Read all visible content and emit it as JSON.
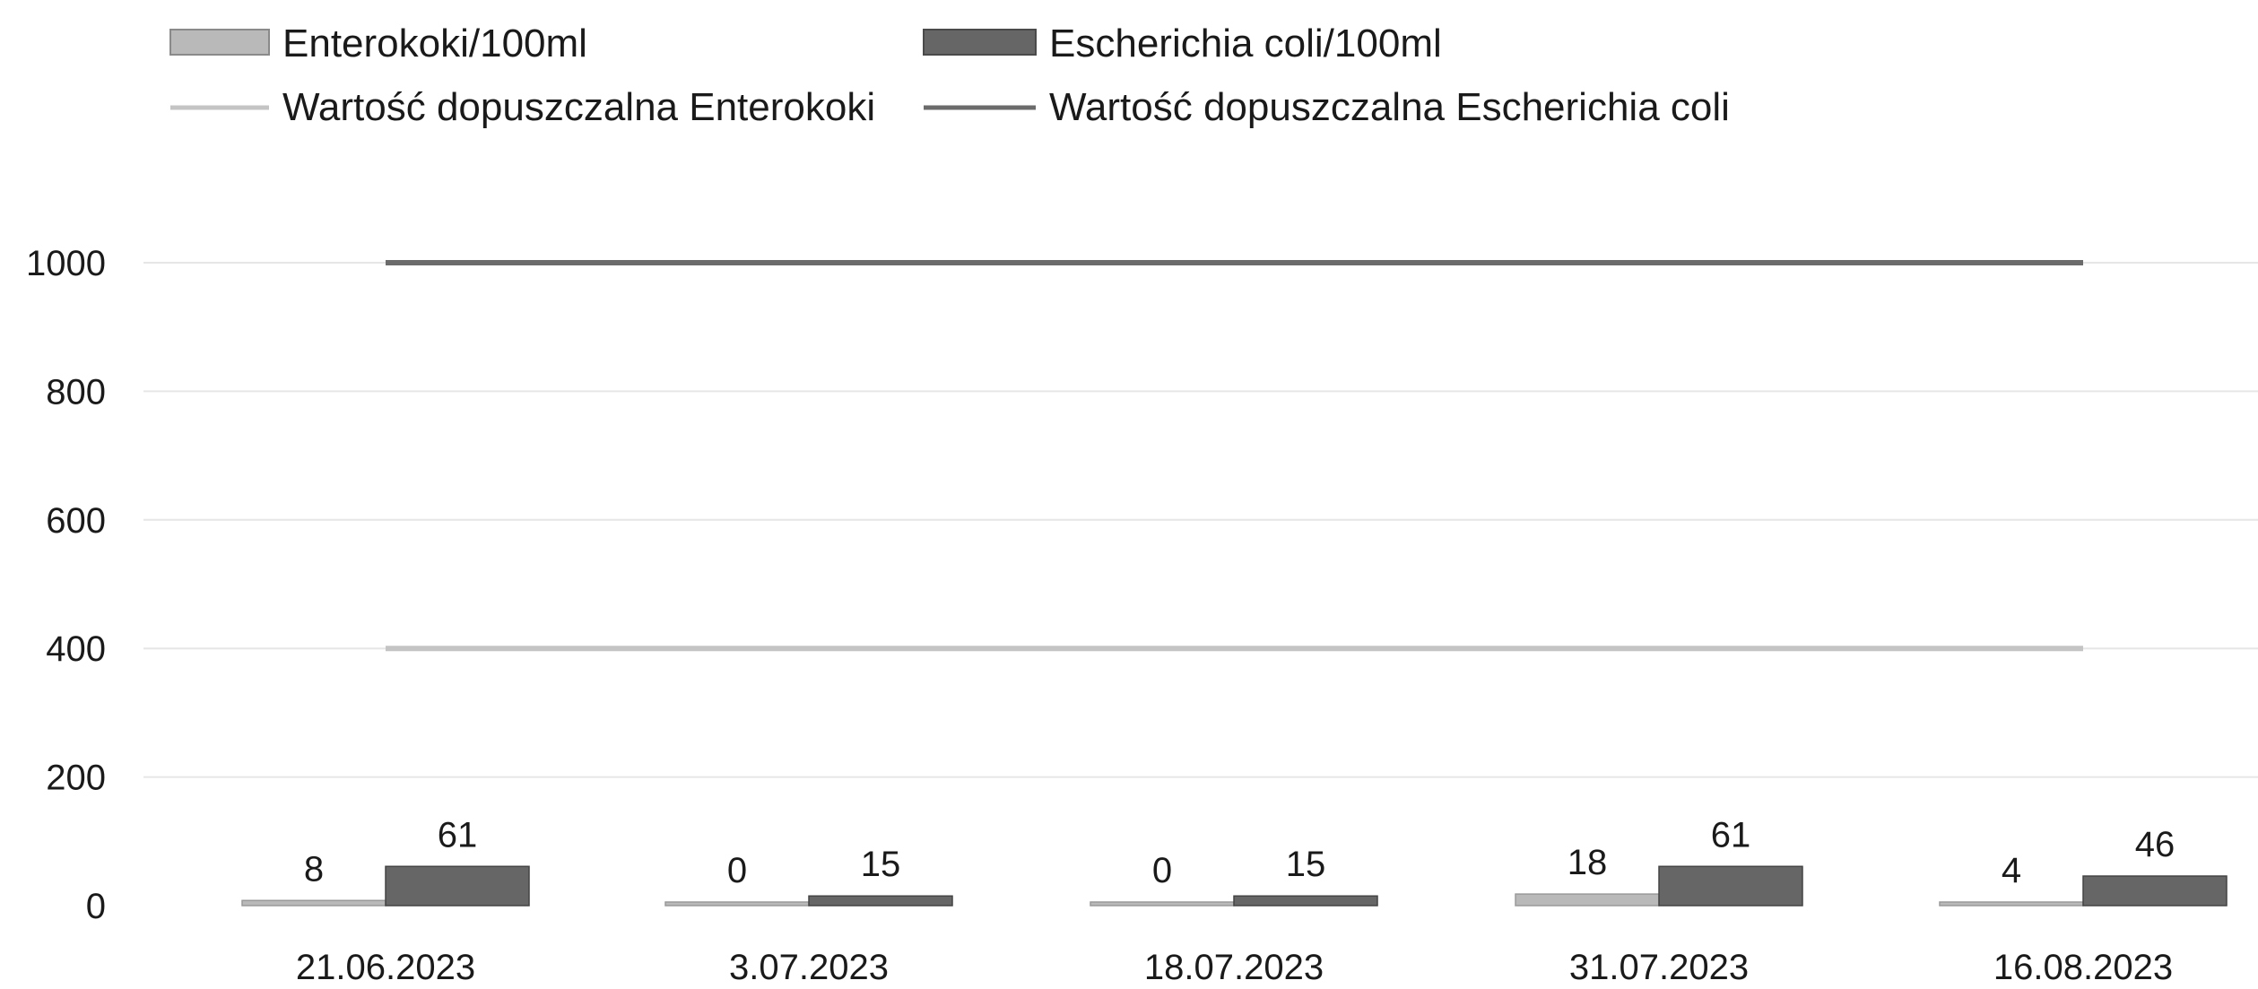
{
  "chart_data": {
    "type": "bar",
    "title": "",
    "xlabel": "",
    "ylabel": "",
    "ylim": [
      0,
      1000
    ],
    "yticks": [
      0,
      200,
      400,
      600,
      800,
      1000
    ],
    "grid": true,
    "legend_position": "top",
    "categories": [
      "21.06.2023",
      "3.07.2023",
      "18.07.2023",
      "31.07.2023",
      "16.08.2023"
    ],
    "series": [
      {
        "name": "Enterokoki/100ml",
        "kind": "bar",
        "values": [
          8,
          0,
          0,
          18,
          4
        ],
        "color": "#b9b9b9"
      },
      {
        "name": "Escherichia coli/100ml",
        "kind": "bar",
        "values": [
          61,
          15,
          15,
          61,
          46
        ],
        "color": "#666666"
      },
      {
        "name": "Wartość dopuszczalna Enterokoki",
        "kind": "line",
        "values": [
          400,
          400,
          400,
          400,
          400
        ],
        "color": "#c4c4c4"
      },
      {
        "name": "Wartość dopuszczalna Escherichia coli",
        "kind": "line",
        "values": [
          1000,
          1000,
          1000,
          1000,
          1000
        ],
        "color": "#6b6b6b"
      }
    ]
  }
}
